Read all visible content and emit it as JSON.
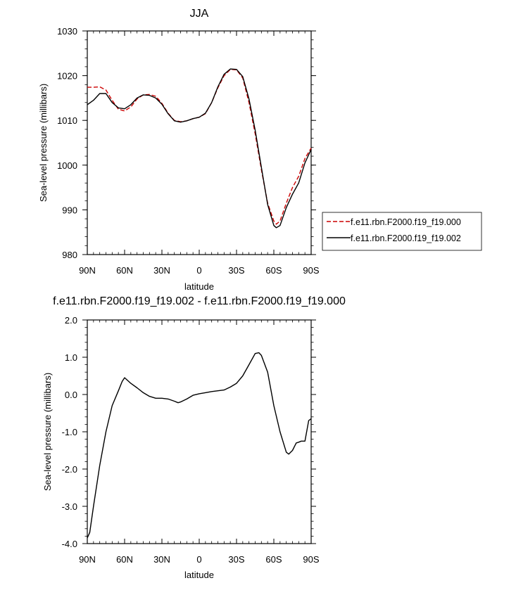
{
  "chart_data": [
    {
      "type": "line",
      "title": "JJA",
      "xlabel": "latitude",
      "ylabel": "Sea-level pressure (millibars)",
      "x_ticks": [
        90,
        60,
        30,
        0,
        -30,
        -60,
        -90
      ],
      "x_tick_labels": [
        "90N",
        "60N",
        "30N",
        "0",
        "30S",
        "60S",
        "90S"
      ],
      "y_ticks": [
        980,
        990,
        1000,
        1010,
        1020,
        1030
      ],
      "y_tick_labels": [
        "980",
        "990",
        "1000",
        "1010",
        "1020",
        "1030"
      ],
      "xlim": [
        90,
        -90
      ],
      "ylim": [
        980,
        1030
      ],
      "legend_position": "right",
      "series": [
        {
          "name": "f.e11.rbn.F2000.f19_f19.000",
          "color": "#cc0000",
          "dash": "dashed",
          "x": [
            90,
            85,
            80,
            75,
            70,
            65,
            60,
            55,
            50,
            45,
            40,
            35,
            30,
            25,
            20,
            15,
            10,
            5,
            0,
            -5,
            -10,
            -15,
            -20,
            -25,
            -30,
            -35,
            -40,
            -45,
            -50,
            -55,
            -60,
            -62,
            -65,
            -70,
            -75,
            -80,
            -85,
            -90
          ],
          "y": [
            1017.4,
            1017.4,
            1017.5,
            1016.8,
            1014.5,
            1012.5,
            1012.1,
            1013.0,
            1014.8,
            1015.7,
            1015.8,
            1015.4,
            1013.8,
            1011.6,
            1010.0,
            1009.7,
            1009.9,
            1010.4,
            1010.7,
            1011.5,
            1014.0,
            1017.3,
            1020.0,
            1021.4,
            1021.3,
            1019.5,
            1014.0,
            1007.0,
            999.0,
            991.5,
            987.5,
            986.8,
            987.5,
            991.5,
            995.0,
            997.5,
            1001.5,
            1003.8
          ]
        },
        {
          "name": "f.e11.rbn.F2000.f19_f19.002",
          "color": "#000000",
          "dash": "solid",
          "x": [
            90,
            85,
            80,
            75,
            70,
            65,
            60,
            55,
            50,
            45,
            40,
            35,
            30,
            25,
            20,
            15,
            10,
            5,
            0,
            -5,
            -10,
            -15,
            -20,
            -25,
            -30,
            -35,
            -40,
            -45,
            -50,
            -55,
            -60,
            -62,
            -65,
            -70,
            -75,
            -80,
            -85,
            -90
          ],
          "y": [
            1013.5,
            1014.5,
            1016.0,
            1016.0,
            1014.0,
            1012.8,
            1012.6,
            1013.5,
            1015.0,
            1015.7,
            1015.6,
            1015.0,
            1013.6,
            1011.5,
            1009.9,
            1009.6,
            1009.9,
            1010.4,
            1010.7,
            1011.6,
            1014.0,
            1017.5,
            1020.3,
            1021.5,
            1021.4,
            1019.8,
            1014.8,
            1007.8,
            999.5,
            991.2,
            986.5,
            986.0,
            986.5,
            990.5,
            993.5,
            996.0,
            1000.5,
            1003.5
          ]
        }
      ]
    },
    {
      "type": "line",
      "title": "f.e11.rbn.F2000.f19_f19.002 - f.e11.rbn.F2000.f19_f19.000",
      "xlabel": "latitude",
      "ylabel": "Sea-level pressure (millibars)",
      "x_ticks": [
        90,
        60,
        30,
        0,
        -30,
        -60,
        -90
      ],
      "x_tick_labels": [
        "90N",
        "60N",
        "30N",
        "0",
        "30S",
        "60S",
        "90S"
      ],
      "y_ticks": [
        -4,
        -3,
        -2,
        -1,
        0,
        1,
        2
      ],
      "y_tick_labels": [
        "-4.0",
        "-3.0",
        "-2.0",
        "-1.0",
        "0.0",
        "1.0",
        "2.0"
      ],
      "xlim": [
        90,
        -90
      ],
      "ylim": [
        -4,
        2
      ],
      "series": [
        {
          "color": "#000000",
          "dash": "solid",
          "x": [
            90,
            88,
            85,
            80,
            75,
            70,
            65,
            62,
            60,
            55,
            50,
            45,
            40,
            35,
            30,
            25,
            20,
            17,
            15,
            10,
            5,
            0,
            -5,
            -10,
            -15,
            -20,
            -25,
            -30,
            -35,
            -40,
            -45,
            -48,
            -50,
            -55,
            -60,
            -65,
            -70,
            -72,
            -75,
            -78,
            -80,
            -82,
            -85,
            -88,
            -90
          ],
          "y": [
            -3.85,
            -3.7,
            -3.0,
            -1.9,
            -1.0,
            -0.3,
            0.1,
            0.35,
            0.45,
            0.3,
            0.18,
            0.05,
            -0.05,
            -0.1,
            -0.1,
            -0.12,
            -0.18,
            -0.22,
            -0.2,
            -0.12,
            -0.02,
            0.02,
            0.05,
            0.08,
            0.1,
            0.12,
            0.2,
            0.3,
            0.5,
            0.8,
            1.1,
            1.12,
            1.05,
            0.6,
            -0.3,
            -1.0,
            -1.55,
            -1.6,
            -1.5,
            -1.3,
            -1.28,
            -1.25,
            -1.25,
            -0.7,
            -0.65
          ]
        }
      ]
    }
  ]
}
